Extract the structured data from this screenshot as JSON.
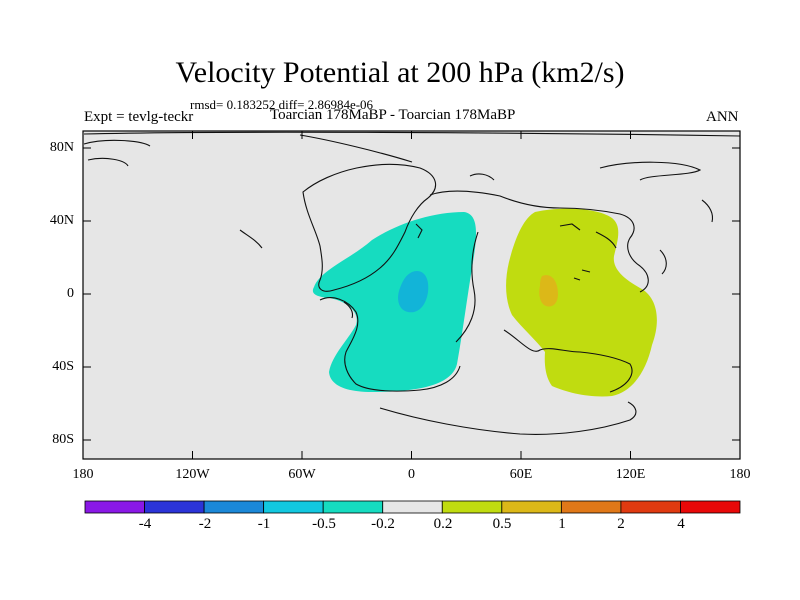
{
  "title": "Velocity Potential at 200 hPa (km2/s)",
  "stats": "rmsd= 0.183252 diff= 2.86984e-06",
  "experiment": "Expt = tevlg-teckr",
  "case": "Toarcian 178MaBP - Toarcian 178MaBP",
  "season": "ANN",
  "lat_labels": [
    "80N",
    "40N",
    "0",
    "40S",
    "80S"
  ],
  "lon_labels": [
    "180",
    "120W",
    "60W",
    "0",
    "60E",
    "120E",
    "180"
  ],
  "colorbar": {
    "labels": [
      "-4",
      "-2",
      "-1",
      "-0.5",
      "-0.2",
      "0.2",
      "0.5",
      "1",
      "2",
      "4"
    ],
    "colors": [
      "#8a18e6",
      "#2b34d8",
      "#1b88d8",
      "#12c8e0",
      "#16dcc0",
      "#e6e6e6",
      "#c0dc10",
      "#dcb818",
      "#e07818",
      "#e03a10",
      "#e80808"
    ]
  },
  "colors": {
    "neutral": "#e6e6e6",
    "negative_weak": "#16dcc0",
    "negative_core": "#12b4d8",
    "positive_weak": "#c0dc10",
    "positive_core": "#dcb818"
  }
}
